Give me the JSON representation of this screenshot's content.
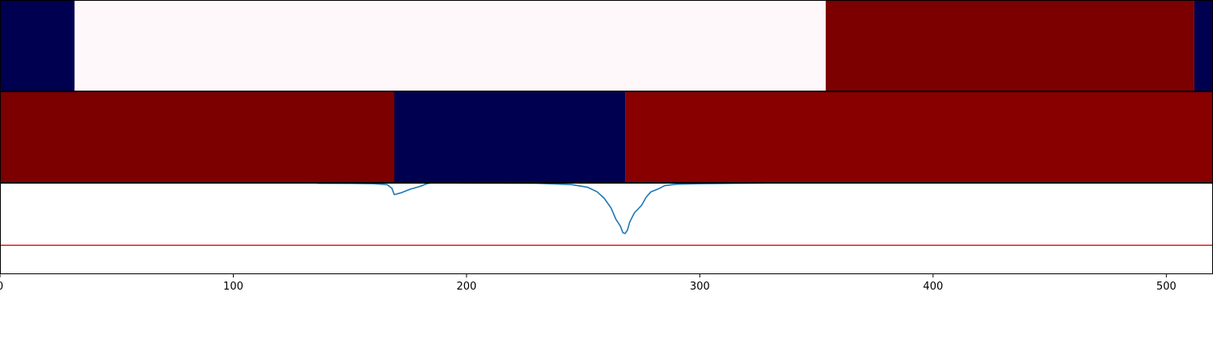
{
  "chart_data": [
    {
      "type": "heatmap",
      "row": 1,
      "xlim": [
        0,
        520
      ],
      "colors": {
        "low": "#000050",
        "mid": "#fff8fa",
        "high": "#7c0000"
      },
      "segments": [
        {
          "x0": 0,
          "x1": 32,
          "level": "low"
        },
        {
          "x0": 32,
          "x1": 354,
          "level": "mid"
        },
        {
          "x0": 354,
          "x1": 512,
          "level": "high"
        },
        {
          "x0": 512,
          "x1": 520,
          "level": "low"
        }
      ]
    },
    {
      "type": "heatmap",
      "row": 2,
      "xlim": [
        0,
        520
      ],
      "colors": {
        "low": "#000050",
        "high": "#7c0000",
        "high2": "#880000"
      },
      "segments": [
        {
          "x0": 0,
          "x1": 169,
          "level": "high"
        },
        {
          "x0": 169,
          "x1": 268,
          "level": "low"
        },
        {
          "x0": 268,
          "x1": 520,
          "level": "high2"
        }
      ]
    },
    {
      "type": "line",
      "row": 3,
      "xlim": [
        0,
        520
      ],
      "ylim": [
        -1.0,
        0.0
      ],
      "line_color": "#1f77b4",
      "threshold": {
        "y": -0.69,
        "color": "#e41a1c"
      },
      "xticks": [
        0,
        100,
        200,
        300,
        400,
        500
      ],
      "xtick_labels": [
        "0",
        "100",
        "200",
        "300",
        "400",
        "500"
      ],
      "series": [
        {
          "x": [
            136,
            150,
            160,
            166,
            168,
            169,
            172,
            176,
            180,
            183,
            185,
            200,
            230,
            245,
            252,
            256,
            259,
            262,
            264,
            266,
            267,
            268,
            269,
            270,
            272,
            275,
            277,
            279,
            282,
            285,
            290,
            300,
            315,
            329
          ],
          "y": [
            -0.005,
            -0.006,
            -0.01,
            -0.02,
            -0.06,
            -0.13,
            -0.11,
            -0.07,
            -0.04,
            -0.01,
            0.0,
            -0.003,
            -0.005,
            -0.02,
            -0.05,
            -0.1,
            -0.17,
            -0.28,
            -0.4,
            -0.48,
            -0.55,
            -0.56,
            -0.52,
            -0.43,
            -0.33,
            -0.25,
            -0.16,
            -0.1,
            -0.07,
            -0.03,
            -0.015,
            -0.01,
            -0.005,
            -0.002
          ]
        }
      ]
    }
  ]
}
